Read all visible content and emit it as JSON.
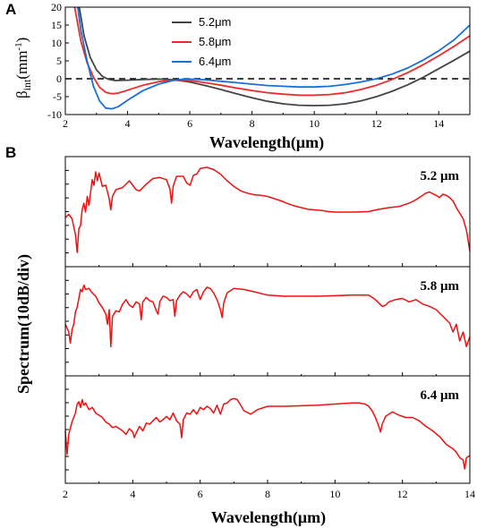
{
  "panels": {
    "a_letter": "A",
    "b_letter": "B"
  },
  "colors": {
    "s52": "#444444",
    "s58": "#ee2a2a",
    "s64": "#1a6fd8",
    "spectrum": "#ee1111"
  },
  "chart_data": [
    {
      "type": "line",
      "panel": "A",
      "xlabel": "Wavelength(μm)",
      "ylabel_main": "β",
      "ylabel_sub": "int",
      "ylabel_unit": "(mm",
      "ylabel_exp": "-1",
      "ylabel_close": ")",
      "xlim": [
        2,
        15
      ],
      "ylim": [
        -10,
        20
      ],
      "xticks": [
        "2",
        "4",
        "6",
        "8",
        "10",
        "12",
        "14"
      ],
      "yticks": [
        "-10",
        "-5",
        "0",
        "5",
        "10",
        "15",
        "20"
      ],
      "reference_line": {
        "y": 0,
        "style": "dashed"
      },
      "legend_position": "top-center",
      "series": [
        {
          "name": "5.2μm",
          "color": "#444444",
          "x": [
            2.45,
            2.6,
            2.8,
            3.0,
            3.2,
            3.4,
            3.6,
            4.0,
            4.5,
            5.0,
            5.5,
            6.0,
            6.5,
            7.0,
            7.5,
            8.0,
            8.5,
            9.0,
            9.5,
            10.0,
            10.5,
            11.0,
            11.5,
            12.0,
            12.5,
            13.0,
            13.5,
            14.0,
            14.5,
            15.0
          ],
          "y": [
            20,
            12,
            6,
            2.5,
            0.6,
            -0.2,
            -0.5,
            -0.4,
            -0.2,
            -0.1,
            -0.3,
            -0.9,
            -1.9,
            -3.0,
            -4.2,
            -5.3,
            -6.3,
            -7.0,
            -7.4,
            -7.5,
            -7.4,
            -7.0,
            -6.2,
            -5.0,
            -3.5,
            -1.7,
            0.4,
            2.8,
            5.2,
            7.7
          ]
        },
        {
          "name": "5.8μm",
          "color": "#ee2a2a",
          "x": [
            2.3,
            2.5,
            2.7,
            2.9,
            3.1,
            3.3,
            3.5,
            3.7,
            4.0,
            4.5,
            5.0,
            5.5,
            6.0,
            6.5,
            7.0,
            7.5,
            8.0,
            8.5,
            9.0,
            9.5,
            10.0,
            10.5,
            11.0,
            11.5,
            12.0,
            12.5,
            13.0,
            13.5,
            14.0,
            14.5,
            15.0
          ],
          "y": [
            20,
            10.5,
            4.5,
            0.5,
            -2.4,
            -3.8,
            -4.2,
            -4.0,
            -3.2,
            -1.8,
            -0.8,
            -0.4,
            -0.5,
            -1.1,
            -1.8,
            -2.6,
            -3.3,
            -3.9,
            -4.3,
            -4.6,
            -4.6,
            -4.4,
            -3.9,
            -3.0,
            -1.8,
            -0.2,
            1.7,
            3.9,
            6.4,
            9.1,
            12.0
          ]
        },
        {
          "name": "6.4μm",
          "color": "#1a6fd8",
          "x": [
            2.4,
            2.5,
            2.7,
            2.9,
            3.1,
            3.3,
            3.5,
            3.7,
            4.0,
            4.5,
            5.0,
            5.5,
            5.8,
            6.0,
            6.5,
            7.0,
            7.5,
            8.0,
            8.5,
            9.0,
            9.5,
            10.0,
            10.5,
            11.0,
            11.5,
            12.0,
            12.5,
            13.0,
            13.5,
            14.0,
            14.5,
            15.0
          ],
          "y": [
            20,
            13.5,
            5,
            -2,
            -6.2,
            -8.2,
            -8.4,
            -7.8,
            -6.0,
            -3.3,
            -1.5,
            -0.4,
            -0.1,
            -0.1,
            -0.3,
            -0.7,
            -1.1,
            -1.5,
            -1.9,
            -2.1,
            -2.3,
            -2.3,
            -2.1,
            -1.6,
            -0.9,
            0.0,
            1.3,
            3.0,
            5.2,
            7.8,
            10.9,
            15.0
          ]
        }
      ]
    },
    {
      "type": "line",
      "panel": "B",
      "xlabel": "Wavelength(μm)",
      "ylabel": "Spectrum(10dB/div)",
      "xlim": [
        2,
        14
      ],
      "xticks": [
        "2",
        "4",
        "6",
        "8",
        "10",
        "12",
        "14"
      ],
      "series": [
        {
          "name": "5.2 μm",
          "color": "#ee1111",
          "x": [
            2.0,
            2.1,
            2.2,
            2.3,
            2.35,
            2.4,
            2.45,
            2.5,
            2.55,
            2.6,
            2.65,
            2.7,
            2.75,
            2.8,
            2.85,
            2.9,
            2.95,
            3.0,
            3.05,
            3.1,
            3.2,
            3.3,
            3.35,
            3.4,
            3.5,
            3.7,
            3.9,
            4.1,
            4.2,
            4.4,
            4.6,
            4.8,
            5.0,
            5.1,
            5.15,
            5.2,
            5.3,
            5.5,
            5.6,
            5.7,
            5.8,
            5.9,
            6.0,
            6.2,
            6.4,
            6.6,
            6.8,
            7.0,
            7.2,
            7.4,
            7.6,
            7.8,
            8.0,
            8.2,
            8.4,
            8.6,
            8.8,
            9.0,
            9.2,
            9.4,
            9.6,
            9.8,
            10.0,
            10.3,
            10.6,
            11.0,
            11.3,
            11.6,
            11.9,
            12.2,
            12.4,
            12.6,
            12.7,
            12.8,
            12.9,
            13.0,
            13.1,
            13.2,
            13.3,
            13.4,
            13.5,
            13.6,
            13.7,
            13.8,
            13.9,
            14.0
          ],
          "y": [
            -2.5,
            -2.2,
            -2.6,
            -4.0,
            -5.6,
            -3.5,
            -3.2,
            -1.8,
            -1.2,
            -2.0,
            -0.6,
            -1.4,
            -0.2,
            0.9,
            0.4,
            1.6,
            0.8,
            1.5,
            0.9,
            0.3,
            0.4,
            -0.8,
            -1.8,
            -0.6,
            0.0,
            0.2,
            0.8,
            0.0,
            -0.1,
            0.5,
            1.0,
            1.1,
            0.9,
            0.1,
            -1.2,
            0.3,
            1.2,
            1.2,
            0.6,
            0.4,
            1.3,
            1.4,
            1.9,
            2.0,
            1.8,
            1.4,
            0.8,
            0.3,
            -0.1,
            -0.3,
            -0.45,
            -0.5,
            -0.6,
            -0.8,
            -1.0,
            -1.25,
            -1.45,
            -1.6,
            -1.75,
            -1.8,
            -1.85,
            -1.95,
            -2.0,
            -2.0,
            -2.0,
            -1.95,
            -1.75,
            -1.6,
            -1.5,
            -1.2,
            -0.9,
            -0.5,
            -0.3,
            -0.2,
            -0.35,
            -0.5,
            -0.7,
            -0.4,
            -0.5,
            -0.7,
            -1.0,
            -1.6,
            -2.1,
            -2.6,
            -3.6,
            -5.5
          ]
        },
        {
          "name": "5.8 μm",
          "color": "#ee1111",
          "x": [
            2.0,
            2.1,
            2.15,
            2.2,
            2.25,
            2.3,
            2.35,
            2.4,
            2.45,
            2.5,
            2.55,
            2.6,
            2.7,
            2.8,
            2.9,
            3.0,
            3.1,
            3.2,
            3.25,
            3.3,
            3.35,
            3.4,
            3.5,
            3.6,
            3.7,
            3.8,
            3.9,
            4.0,
            4.1,
            4.2,
            4.25,
            4.3,
            4.4,
            4.5,
            4.6,
            4.7,
            4.75,
            4.8,
            4.9,
            5.0,
            5.1,
            5.2,
            5.25,
            5.3,
            5.4,
            5.5,
            5.6,
            5.7,
            5.8,
            5.9,
            6.0,
            6.1,
            6.2,
            6.3,
            6.4,
            6.5,
            6.6,
            6.65,
            6.7,
            6.8,
            7.0,
            7.3,
            7.6,
            8.0,
            8.5,
            9.0,
            9.5,
            10.0,
            10.5,
            11.0,
            11.2,
            11.4,
            11.5,
            11.6,
            11.8,
            12.0,
            12.2,
            12.4,
            12.6,
            12.8,
            13.0,
            13.2,
            13.4,
            13.5,
            13.6,
            13.7,
            13.8,
            13.9,
            14.0
          ],
          "y": [
            -2.5,
            -3.2,
            -4.2,
            -3.0,
            -2.5,
            -1.4,
            -1.0,
            -0.2,
            0.6,
            0.4,
            1.0,
            0.6,
            0.7,
            0.3,
            0.0,
            -0.6,
            -1.0,
            -1.6,
            -2.5,
            -1.2,
            -4.5,
            -1.8,
            -1.3,
            -1.4,
            -0.7,
            -0.3,
            -0.8,
            -1.0,
            -0.5,
            -0.7,
            -2.1,
            -0.5,
            -0.1,
            -0.4,
            -0.5,
            -1.3,
            -1.6,
            -0.5,
            0.0,
            -0.1,
            -0.4,
            -0.3,
            -1.8,
            -0.4,
            0.1,
            0.4,
            0.2,
            -0.1,
            0.4,
            0.6,
            -0.3,
            0.4,
            0.8,
            0.7,
            0.3,
            -0.3,
            -1.2,
            -1.9,
            -0.6,
            0.3,
            0.7,
            0.6,
            0.4,
            0.1,
            0.0,
            0.0,
            0.0,
            0.05,
            0.1,
            0.1,
            -0.3,
            -0.9,
            -0.8,
            -0.5,
            -0.3,
            -0.2,
            -0.5,
            -0.3,
            -0.7,
            -0.9,
            -1.2,
            -1.8,
            -2.4,
            -3.2,
            -2.5,
            -4.0,
            -3.2,
            -4.5,
            -3.6
          ]
        },
        {
          "name": "6.4 μm",
          "color": "#ee1111",
          "x": [
            2.0,
            2.05,
            2.1,
            2.2,
            2.3,
            2.35,
            2.4,
            2.45,
            2.5,
            2.55,
            2.6,
            2.7,
            2.8,
            2.9,
            3.0,
            3.1,
            3.2,
            3.3,
            3.4,
            3.5,
            3.6,
            3.7,
            3.8,
            3.9,
            4.0,
            4.05,
            4.1,
            4.2,
            4.3,
            4.4,
            4.5,
            4.6,
            4.7,
            4.8,
            4.9,
            5.0,
            5.1,
            5.2,
            5.3,
            5.4,
            5.45,
            5.5,
            5.6,
            5.7,
            5.8,
            5.9,
            6.0,
            6.1,
            6.2,
            6.3,
            6.4,
            6.5,
            6.6,
            6.7,
            6.8,
            6.9,
            7.0,
            7.1,
            7.2,
            7.3,
            7.5,
            7.7,
            8.0,
            8.5,
            9.0,
            9.5,
            10.0,
            10.5,
            10.7,
            10.9,
            11.0,
            11.1,
            11.2,
            11.3,
            11.35,
            11.4,
            11.5,
            11.7,
            11.9,
            12.1,
            12.3,
            12.5,
            12.7,
            12.9,
            13.1,
            13.3,
            13.5,
            13.6,
            13.7,
            13.8,
            13.85,
            13.9,
            14.0
          ],
          "y": [
            -2.2,
            -4.3,
            -2.5,
            -1.4,
            -0.6,
            0.2,
            0.4,
            -0.1,
            0.6,
            0.1,
            0.3,
            -0.3,
            -0.1,
            -0.6,
            -0.8,
            -1.0,
            -1.4,
            -1.6,
            -1.9,
            -1.8,
            -2.0,
            -2.2,
            -2.5,
            -2.0,
            -2.3,
            -2.8,
            -2.4,
            -1.8,
            -2.2,
            -1.5,
            -1.6,
            -1.3,
            -1.0,
            -1.4,
            -1.2,
            -0.9,
            -1.2,
            -0.6,
            -1.3,
            -1.6,
            -2.8,
            -1.2,
            -0.6,
            -0.7,
            -0.3,
            -0.7,
            -0.1,
            -0.3,
            0.0,
            -0.2,
            -0.6,
            0.1,
            -0.7,
            0.2,
            0.3,
            0.6,
            0.7,
            0.6,
            0.1,
            -0.4,
            -0.7,
            -0.3,
            0.0,
            0.0,
            0.05,
            0.1,
            0.2,
            0.3,
            0.3,
            0.2,
            0.0,
            -0.4,
            -1.0,
            -1.8,
            -2.3,
            -1.6,
            -0.9,
            -0.5,
            -0.8,
            -1.0,
            -1.0,
            -1.3,
            -1.8,
            -2.2,
            -2.7,
            -3.4,
            -3.8,
            -4.1,
            -4.6,
            -4.8,
            -5.6,
            -4.6,
            -4.4
          ]
        }
      ]
    }
  ]
}
